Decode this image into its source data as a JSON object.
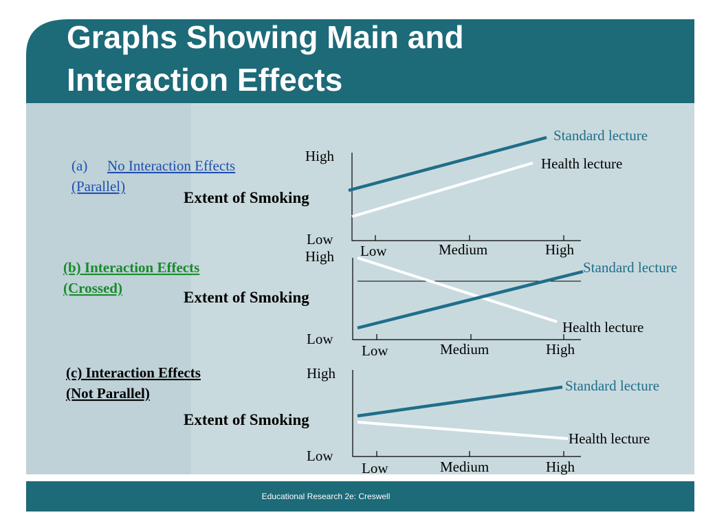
{
  "header": {
    "title_lines": [
      "Graphs Showing Main and",
      "Interaction Effects"
    ]
  },
  "panels": [
    {
      "label_lines": [
        "(a)",
        "No Interaction Effects",
        "(Parallel)"
      ],
      "axis_label": "Extent of Smoking",
      "y_high": "High",
      "y_low": "Low",
      "x_labels": [
        "Low",
        "Medium",
        "High"
      ],
      "series": [
        "Standard lecture",
        "Health lecture"
      ]
    },
    {
      "label_lines": [
        "(b)  Interaction Effects",
        "(Crossed)"
      ],
      "axis_label": "Extent of Smoking",
      "y_high": "High",
      "y_low": "Low",
      "x_labels": [
        "Low",
        "Medium",
        "High"
      ],
      "series": [
        "Standard lecture",
        "Health lecture"
      ]
    },
    {
      "label_lines": [
        "(c)  Interaction Effects",
        "(Not Parallel)"
      ],
      "axis_label": "Extent of Smoking",
      "y_high": "High",
      "y_low": "Low",
      "x_labels": [
        "Low",
        "Medium",
        "High"
      ],
      "series": [
        "Standard lecture",
        "Health lecture"
      ]
    }
  ],
  "footer": {
    "text": "Educational Research 2e:  Creswell"
  }
}
